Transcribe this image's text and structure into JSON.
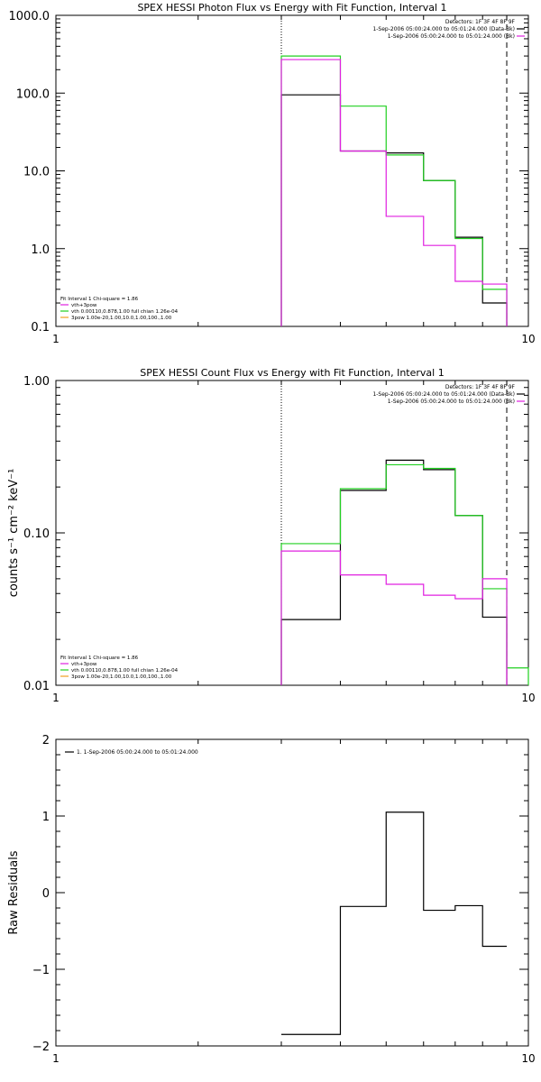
{
  "colors": {
    "black": "#000000",
    "magenta": "#e020e0",
    "green": "#20d020",
    "orange": "#f0a020",
    "background": "#ffffff"
  },
  "chart_data": [
    {
      "type": "line",
      "title": "SPEX HESSI Photon Flux vs Energy with Fit Function, Interval 1",
      "xlabel": "",
      "ylabel": "",
      "xscale": "log",
      "yscale": "log",
      "xlim": [
        1,
        10
      ],
      "ylim": [
        0.1,
        1000
      ],
      "x_ticks": [
        "1",
        "10"
      ],
      "y_ticks": [
        "0.1",
        "1.0",
        "10.0",
        "100.0",
        "1000.0"
      ],
      "vlines": [
        {
          "x": 3.0,
          "style": "dotted"
        },
        {
          "x": 9.0,
          "style": "dashed"
        }
      ],
      "legend_top": {
        "placement": "top-right",
        "lines": [
          {
            "text": "Detectors: 1F 3F 4F 8F 9F",
            "color": ""
          },
          {
            "text": "1-Sep-2006 05:00:24.000 to 05:01:24.000 (Data-Bk)",
            "color": "black"
          },
          {
            "text": "1-Sep-2006 05:00:24.000 to 05:01:24.000 (Bk)",
            "color": "magenta"
          }
        ]
      },
      "legend_bottom": {
        "placement": "bottom-left",
        "lines": [
          {
            "text": "Fit Interval  1    Chi-square = 1.86",
            "color": ""
          },
          {
            "text": "vth+3pow",
            "color": "magenta"
          },
          {
            "text": "vth 0.00110,0.878,1.00   full chian 1.26e-04",
            "color": "green"
          },
          {
            "text": "3pow  1.00e-20,1.00,10.0,1.00,100.,1.00",
            "color": "orange"
          }
        ]
      },
      "series": [
        {
          "color": "black",
          "bins": [
            3,
            4,
            5,
            6,
            7,
            8,
            9
          ],
          "values": [
            95,
            18,
            17,
            7.5,
            1.4,
            0.2
          ]
        },
        {
          "color": "green",
          "bins": [
            3,
            4,
            5,
            6,
            7,
            8,
            9
          ],
          "values": [
            300,
            68,
            16,
            7.5,
            1.35,
            0.3
          ]
        },
        {
          "color": "magenta",
          "bins": [
            3,
            4,
            5,
            6,
            7,
            8,
            9
          ],
          "values": [
            270,
            18,
            2.6,
            1.1,
            0.38,
            0.35
          ]
        }
      ]
    },
    {
      "type": "line",
      "title": "SPEX HESSI Count Flux vs Energy with Fit Function, Interval 1",
      "xlabel": "",
      "ylabel": "counts s⁻¹ cm⁻² keV⁻¹",
      "xscale": "log",
      "yscale": "log",
      "xlim": [
        1,
        10
      ],
      "ylim": [
        0.01,
        1.0
      ],
      "x_ticks": [
        "1",
        "10"
      ],
      "y_ticks": [
        "0.01",
        "0.10",
        "1.00"
      ],
      "vlines": [
        {
          "x": 3.0,
          "style": "dotted"
        },
        {
          "x": 9.0,
          "style": "dashed"
        }
      ],
      "legend_top": {
        "placement": "top-right",
        "lines": [
          {
            "text": "Detectors: 1F 3F 4F 8F 9F",
            "color": ""
          },
          {
            "text": "1-Sep-2006 05:00:24.000 to 05:01:24.000 (Data-Bk)",
            "color": "black"
          },
          {
            "text": "1-Sep-2006 05:00:24.000 to 05:01:24.000 (Bk)",
            "color": "magenta"
          }
        ]
      },
      "legend_bottom": {
        "placement": "bottom-left",
        "lines": [
          {
            "text": "Fit Interval  1    Chi-square = 1.86",
            "color": ""
          },
          {
            "text": "vth+3pow",
            "color": "magenta"
          },
          {
            "text": "vth 0.00110,0.878,1.00   full chian 1.26e-04",
            "color": "green"
          },
          {
            "text": "3pow  1.00e-20,1.00,10.0,1.00,100.,1.00",
            "color": "orange"
          }
        ]
      },
      "series": [
        {
          "color": "black",
          "bins": [
            3,
            4,
            5,
            6,
            7,
            8,
            9
          ],
          "values": [
            0.027,
            0.19,
            0.3,
            0.26,
            0.13,
            0.028
          ]
        },
        {
          "color": "green",
          "bins": [
            3,
            4,
            5,
            6,
            7,
            8,
            9,
            10
          ],
          "values": [
            0.085,
            0.195,
            0.28,
            0.265,
            0.13,
            0.043,
            0.013
          ]
        },
        {
          "color": "magenta",
          "bins": [
            3,
            4,
            5,
            6,
            7,
            8,
            9
          ],
          "values": [
            0.076,
            0.053,
            0.046,
            0.039,
            0.037,
            0.05
          ]
        }
      ]
    },
    {
      "type": "line",
      "title": "",
      "xlabel": "",
      "ylabel": "Raw Residuals",
      "xscale": "log",
      "yscale": "linear",
      "xlim": [
        1,
        10
      ],
      "ylim": [
        -2,
        2
      ],
      "x_ticks": [
        "1",
        "10"
      ],
      "y_ticks": [
        "−2",
        "−1",
        "0",
        "1",
        "2"
      ],
      "vlines": [],
      "legend_top": {
        "placement": "top-left",
        "lines": [
          {
            "text": "1.  1-Sep-2006 05:00:24.000 to 05:01:24.000",
            "color": "black"
          }
        ]
      },
      "series": [
        {
          "color": "black",
          "bins": [
            3,
            4,
            5,
            6,
            7,
            8,
            9
          ],
          "values": [
            -1.85,
            -0.18,
            1.05,
            -0.23,
            -0.17,
            -0.7
          ]
        }
      ]
    }
  ]
}
